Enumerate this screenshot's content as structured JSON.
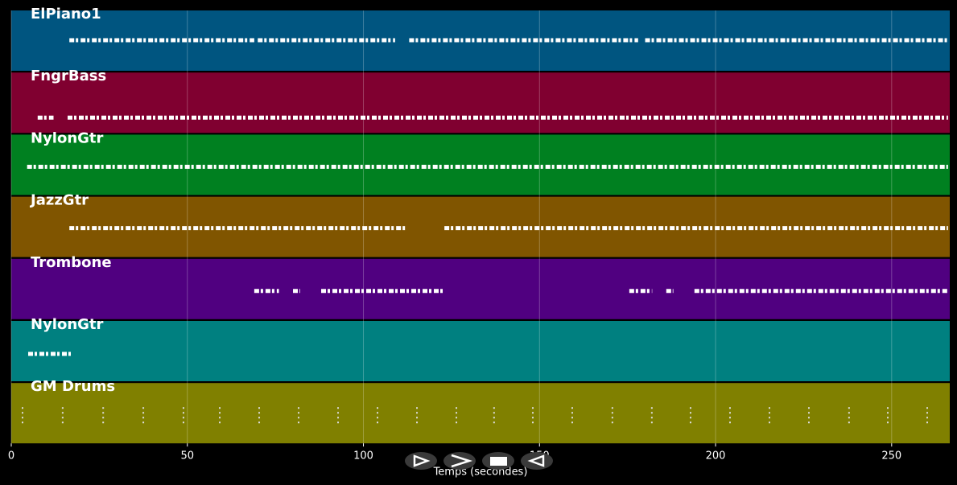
{
  "chart_data": {
    "type": "pianoroll",
    "xlabel": "Temps (secondes)",
    "xlim": [
      0,
      266.5
    ],
    "xticks": [
      0,
      50,
      100,
      150,
      200,
      250
    ],
    "grid": true,
    "tracks": [
      {
        "name": "ElPiano1",
        "color": "#005580",
        "notes": [
          [
            16.5,
            69
          ],
          [
            70,
            109
          ],
          [
            113,
            178
          ],
          [
            180,
            266
          ]
        ]
      },
      {
        "name": "FngrBass",
        "color": "#800030",
        "notes": [
          [
            7.5,
            12
          ],
          [
            16,
            266
          ]
        ]
      },
      {
        "name": "NylonGtr",
        "color": "#008020",
        "notes": [
          [
            4.5,
            266
          ]
        ]
      },
      {
        "name": "JazzGtr",
        "color": "#805500",
        "notes": [
          [
            16.5,
            112
          ],
          [
            123,
            266
          ]
        ]
      },
      {
        "name": "Trombone",
        "color": "#500080",
        "notes": [
          [
            69,
            76
          ],
          [
            80,
            82
          ],
          [
            88,
            123
          ],
          [
            175.5,
            182
          ],
          [
            186,
            188
          ],
          [
            194,
            266
          ]
        ]
      },
      {
        "name": "NylonGtr",
        "color": "#008080",
        "notes": [
          [
            4.8,
            17.1
          ]
        ]
      },
      {
        "name": "GM Drums",
        "color": "#808000",
        "hits": [
          3.2,
          14.6,
          26.1,
          37.5,
          48.9,
          59.2,
          70.4,
          81.6,
          92.8,
          104,
          115.2,
          126.4,
          137.1,
          148.1,
          159.3,
          170.7,
          181.9,
          192.9,
          204.1,
          215.3,
          226.5,
          237.9,
          248.9,
          260.1
        ]
      }
    ]
  }
}
